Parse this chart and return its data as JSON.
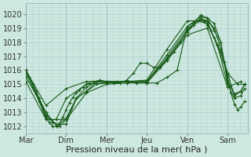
{
  "bg_color": "#cce8e0",
  "grid_color": "#b0cccc",
  "line_color": "#1a5c1a",
  "xlabel": "Pression niveau de la mer( hPa )",
  "xlabel_fontsize": 8,
  "tick_fontsize": 7,
  "ylim": [
    1011.5,
    1020.5
  ],
  "yticks": [
    1012,
    1013,
    1014,
    1015,
    1016,
    1017,
    1018,
    1019,
    1020
  ],
  "day_labels": [
    "Mar",
    "Dim",
    "Mer",
    "Jeu",
    "Ven",
    "Sam"
  ],
  "day_positions": [
    0,
    1,
    2,
    3,
    4,
    5
  ],
  "xlim": [
    0,
    5.5
  ],
  "curves": [
    {
      "x": [
        0.0,
        0.08,
        0.17,
        0.25,
        0.33,
        0.42,
        0.5,
        0.58,
        0.67,
        0.75,
        0.83,
        0.92,
        1.0,
        1.08,
        1.17,
        1.25,
        1.33,
        1.42,
        1.5,
        1.58,
        1.67,
        1.75,
        1.83,
        2.0,
        2.17,
        2.33,
        2.5,
        2.67,
        2.83,
        3.0,
        3.17,
        3.33,
        3.5,
        3.67,
        3.83,
        4.0,
        4.08,
        4.17,
        4.25,
        4.33,
        4.42,
        4.5,
        4.58,
        4.67,
        4.75,
        4.83,
        4.92,
        5.0,
        5.08,
        5.17,
        5.25,
        5.33,
        5.42
      ],
      "y": [
        1016.0,
        1015.5,
        1015.0,
        1014.4,
        1013.8,
        1013.2,
        1012.7,
        1012.3,
        1012.0,
        1012.0,
        1012.2,
        1012.7,
        1013.2,
        1013.7,
        1014.1,
        1014.4,
        1014.6,
        1014.8,
        1015.0,
        1015.1,
        1015.2,
        1015.2,
        1015.3,
        1015.2,
        1015.1,
        1015.1,
        1015.3,
        1015.8,
        1016.5,
        1016.5,
        1016.2,
        1016.2,
        1016.7,
        1017.3,
        1018.0,
        1018.8,
        1019.1,
        1019.3,
        1019.5,
        1019.6,
        1019.5,
        1019.2,
        1018.8,
        1018.3,
        1017.8,
        1017.3,
        1016.6,
        1015.5,
        1014.4,
        1013.6,
        1013.2,
        1013.4,
        1013.8
      ]
    },
    {
      "x": [
        0.0,
        0.17,
        0.33,
        0.5,
        0.67,
        0.83,
        1.0,
        1.25,
        1.5,
        1.75,
        2.0,
        2.25,
        2.5,
        2.75,
        3.0,
        3.25,
        3.5,
        3.75,
        4.0,
        4.17,
        4.33,
        4.5,
        4.67,
        4.83,
        5.0,
        5.17,
        5.33,
        5.42
      ],
      "y": [
        1016.0,
        1015.0,
        1014.0,
        1013.0,
        1012.3,
        1012.0,
        1012.5,
        1014.0,
        1014.8,
        1015.2,
        1015.2,
        1015.2,
        1015.2,
        1015.1,
        1015.1,
        1015.1,
        1015.5,
        1016.0,
        1019.1,
        1019.4,
        1019.9,
        1019.7,
        1018.8,
        1018.0,
        1015.3,
        1014.3,
        1014.5,
        1015.0
      ]
    },
    {
      "x": [
        0.0,
        0.17,
        0.33,
        0.5,
        0.67,
        0.83,
        1.0,
        1.25,
        1.5,
        1.75,
        2.0,
        2.5,
        3.0,
        3.5,
        4.0,
        4.17,
        4.33,
        4.5,
        4.67,
        4.83,
        5.0,
        5.17,
        5.33,
        5.42
      ],
      "y": [
        1015.8,
        1014.8,
        1013.8,
        1012.8,
        1012.3,
        1012.2,
        1012.6,
        1014.0,
        1014.5,
        1015.0,
        1015.1,
        1015.2,
        1015.2,
        1016.9,
        1018.9,
        1019.2,
        1019.7,
        1019.5,
        1019.0,
        1017.5,
        1015.8,
        1014.2,
        1014.5,
        1015.0
      ]
    },
    {
      "x": [
        0.0,
        0.25,
        0.5,
        0.75,
        1.0,
        1.25,
        1.5,
        1.75,
        2.0,
        2.5,
        3.0,
        3.5,
        4.0,
        4.25,
        4.5,
        4.75,
        5.0,
        5.17,
        5.33,
        5.42
      ],
      "y": [
        1015.5,
        1014.3,
        1013.0,
        1012.1,
        1012.2,
        1014.0,
        1014.5,
        1015.2,
        1015.1,
        1015.2,
        1015.2,
        1016.8,
        1018.7,
        1019.5,
        1019.3,
        1017.8,
        1015.0,
        1014.0,
        1014.2,
        1014.7
      ]
    },
    {
      "x": [
        0.0,
        0.25,
        0.5,
        0.75,
        1.0,
        1.5,
        2.0,
        2.5,
        3.0,
        3.5,
        4.0,
        4.33,
        4.5,
        4.67,
        4.83,
        5.0,
        5.17,
        5.33
      ],
      "y": [
        1016.0,
        1014.5,
        1012.5,
        1012.5,
        1014.0,
        1015.0,
        1015.1,
        1015.2,
        1015.2,
        1017.1,
        1019.1,
        1019.8,
        1019.7,
        1019.3,
        1018.0,
        1015.2,
        1014.3,
        1014.5
      ]
    },
    {
      "x": [
        0.0,
        0.5,
        1.0,
        1.5,
        2.0,
        2.5,
        3.0,
        3.5,
        4.0,
        4.5,
        5.0,
        5.25,
        5.42
      ],
      "y": [
        1016.0,
        1013.5,
        1014.7,
        1015.2,
        1015.2,
        1015.2,
        1015.3,
        1017.5,
        1019.5,
        1019.5,
        1015.8,
        1015.0,
        1015.0
      ]
    },
    {
      "x": [
        0.0,
        0.5,
        1.0,
        1.5,
        2.0,
        2.5,
        3.0,
        3.5,
        4.0,
        4.5,
        5.0,
        5.33
      ],
      "y": [
        1015.2,
        1012.5,
        1012.5,
        1014.4,
        1015.0,
        1015.1,
        1015.1,
        1016.7,
        1018.5,
        1019.0,
        1014.8,
        1015.2
      ]
    }
  ]
}
